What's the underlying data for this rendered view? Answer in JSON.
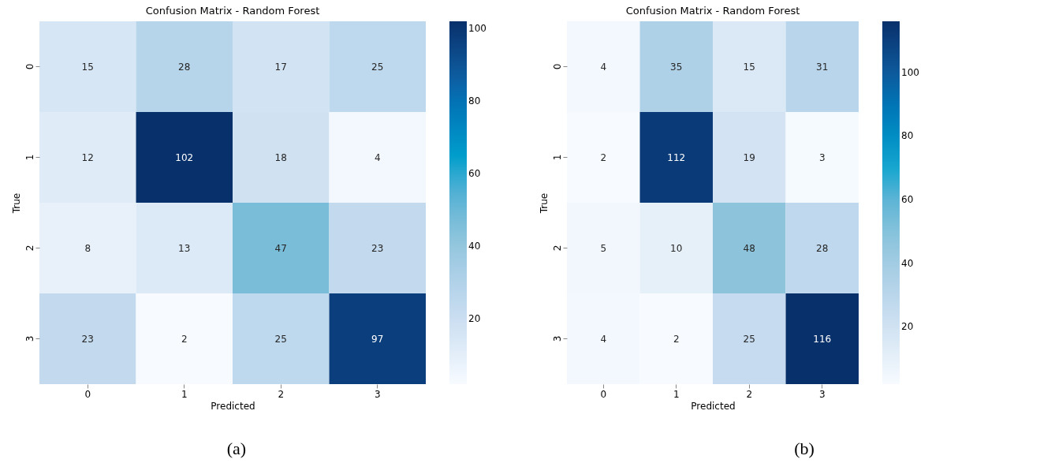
{
  "chart_data": [
    {
      "type": "heatmap",
      "title": "Confusion Matrix - Random Forest",
      "xlabel": "Predicted",
      "ylabel": "True",
      "categories": [
        "0",
        "1",
        "2",
        "3"
      ],
      "y_categories": [
        "0",
        "1",
        "2",
        "3"
      ],
      "cells": [
        [
          15,
          28,
          17,
          25
        ],
        [
          12,
          102,
          18,
          4
        ],
        [
          8,
          13,
          47,
          23
        ],
        [
          23,
          2,
          25,
          97
        ]
      ],
      "clim": [
        2,
        102
      ],
      "cticks": [
        20,
        40,
        60,
        80,
        100
      ],
      "data_labels": true,
      "annotations": [
        "(a)"
      ]
    },
    {
      "type": "heatmap",
      "title": "Confusion Matrix - Random Forest",
      "xlabel": "Predicted",
      "ylabel": "True",
      "categories": [
        "0",
        "1",
        "2",
        "3"
      ],
      "y_categories": [
        "0",
        "1",
        "2",
        "3"
      ],
      "cells": [
        [
          4,
          35,
          15,
          31
        ],
        [
          2,
          112,
          19,
          3
        ],
        [
          5,
          10,
          48,
          28
        ],
        [
          4,
          2,
          25,
          116
        ]
      ],
      "clim": [
        2,
        116
      ],
      "cticks": [
        20,
        40,
        60,
        80,
        100
      ],
      "data_labels": true,
      "annotations": [
        "(b)"
      ]
    }
  ]
}
